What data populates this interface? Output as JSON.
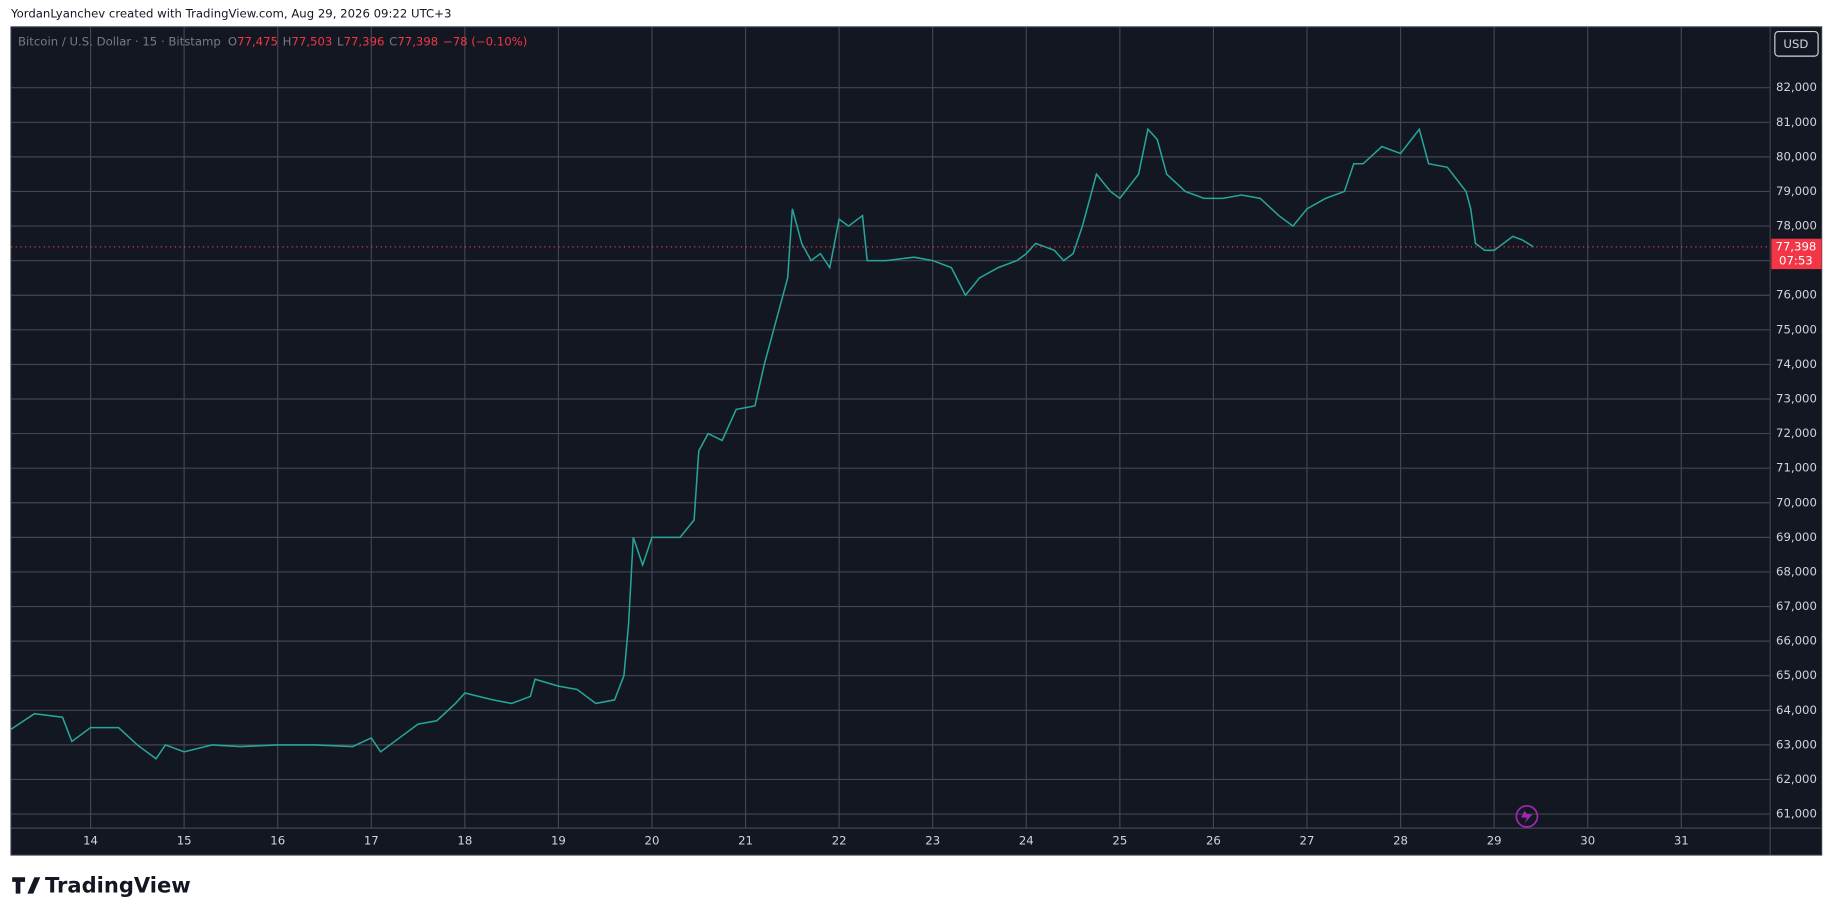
{
  "header": {
    "credit": "YordanLyanchev created with TradingView.com, Aug 29, 2026 09:22 UTC+3"
  },
  "footer": {
    "brand": "TradingView"
  },
  "chart_data": {
    "type": "line",
    "currency": "USD",
    "ohlc": [
      {
        "name": "O",
        "value": 77475,
        "label": "77,475"
      },
      {
        "name": "H",
        "value": 77503,
        "label": "77,503"
      },
      {
        "name": "L",
        "value": 77396,
        "label": "77,396"
      },
      {
        "name": "C",
        "value": 77398,
        "label": "77,398"
      }
    ],
    "change": "−78 (−0.10%)",
    "countdown": "07:53",
    "x": [
      13.15,
      13.4,
      13.7,
      13.8,
      14.0,
      14.3,
      14.5,
      14.7,
      14.8,
      15.0,
      15.3,
      15.6,
      16.0,
      16.4,
      16.8,
      17.0,
      17.1,
      17.3,
      17.5,
      17.7,
      17.9,
      18.0,
      18.3,
      18.5,
      18.7,
      18.75,
      19.0,
      19.2,
      19.4,
      19.6,
      19.7,
      19.75,
      19.8,
      19.9,
      20.0,
      20.3,
      20.45,
      20.5,
      20.6,
      20.75,
      20.9,
      21.1,
      21.2,
      21.3,
      21.45,
      21.5,
      21.6,
      21.7,
      21.8,
      21.9,
      22.0,
      22.1,
      22.25,
      22.3,
      22.5,
      22.8,
      23.0,
      23.2,
      23.35,
      23.5,
      23.7,
      23.9,
      24.0,
      24.1,
      24.3,
      24.4,
      24.5,
      24.6,
      24.75,
      24.9,
      25.0,
      25.2,
      25.3,
      25.4,
      25.5,
      25.7,
      25.9,
      26.1,
      26.3,
      26.5,
      26.7,
      26.85,
      27.0,
      27.2,
      27.4,
      27.5,
      27.6,
      27.8,
      28.0,
      28.2,
      28.3,
      28.5,
      28.7,
      28.75,
      28.8,
      28.9,
      29.0,
      29.2,
      29.3,
      29.42
    ],
    "series": [
      {
        "name": "Bitcoin / U.S. Dollar · 15 · Bitstamp",
        "color": "#26a69a",
        "values": [
          63450,
          63900,
          63800,
          63100,
          63500,
          63500,
          63000,
          62600,
          63000,
          62800,
          63000,
          62950,
          63000,
          63000,
          62950,
          63200,
          62800,
          63200,
          63600,
          63700,
          64200,
          64500,
          64300,
          64200,
          64400,
          64900,
          64700,
          64600,
          64200,
          64300,
          65000,
          66500,
          69000,
          68200,
          69000,
          69000,
          69500,
          71500,
          72000,
          71800,
          72700,
          72800,
          74000,
          75000,
          76500,
          78500,
          77500,
          77000,
          77200,
          76800,
          78200,
          78000,
          78300,
          77000,
          77000,
          77100,
          77000,
          76800,
          76000,
          76500,
          76800,
          77000,
          77200,
          77500,
          77300,
          77000,
          77200,
          78000,
          79500,
          79000,
          78800,
          79500,
          80800,
          80500,
          79500,
          79000,
          78800,
          78800,
          78900,
          78800,
          78300,
          78000,
          78500,
          78800,
          79000,
          79800,
          79800,
          80300,
          80100,
          80800,
          79800,
          79700,
          79000,
          78500,
          77500,
          77300,
          77300,
          77700,
          77600,
          77398
        ]
      }
    ],
    "last_price_color": "#f23645",
    "xlim": [
      13.15,
      31.95
    ],
    "ylim": [
      60594,
      83758
    ],
    "xticks": [
      14,
      15,
      16,
      17,
      18,
      19,
      20,
      21,
      22,
      23,
      24,
      25,
      26,
      27,
      28,
      29,
      30,
      31
    ],
    "yticks": [
      {
        "value": 61000,
        "label": "61,000"
      },
      {
        "value": 62000,
        "label": "62,000"
      },
      {
        "value": 63000,
        "label": "63,000"
      },
      {
        "value": 64000,
        "label": "64,000"
      },
      {
        "value": 65000,
        "label": "65,000"
      },
      {
        "value": 66000,
        "label": "66,000"
      },
      {
        "value": 67000,
        "label": "67,000"
      },
      {
        "value": 68000,
        "label": "68,000"
      },
      {
        "value": 69000,
        "label": "69,000"
      },
      {
        "value": 70000,
        "label": "70,000"
      },
      {
        "value": 71000,
        "label": "71,000"
      },
      {
        "value": 72000,
        "label": "72,000"
      },
      {
        "value": 73000,
        "label": "73,000"
      },
      {
        "value": 74000,
        "label": "74,000"
      },
      {
        "value": 75000,
        "label": "75,000"
      },
      {
        "value": 76000,
        "label": "76,000"
      },
      {
        "value": 77000,
        "label": "77,000"
      },
      {
        "value": 78000,
        "label": "78,000"
      },
      {
        "value": 79000,
        "label": "79,000"
      },
      {
        "value": 80000,
        "label": "80,000"
      },
      {
        "value": 81000,
        "label": "81,000"
      },
      {
        "value": 82000,
        "label": "82,000"
      }
    ],
    "grid": true
  }
}
